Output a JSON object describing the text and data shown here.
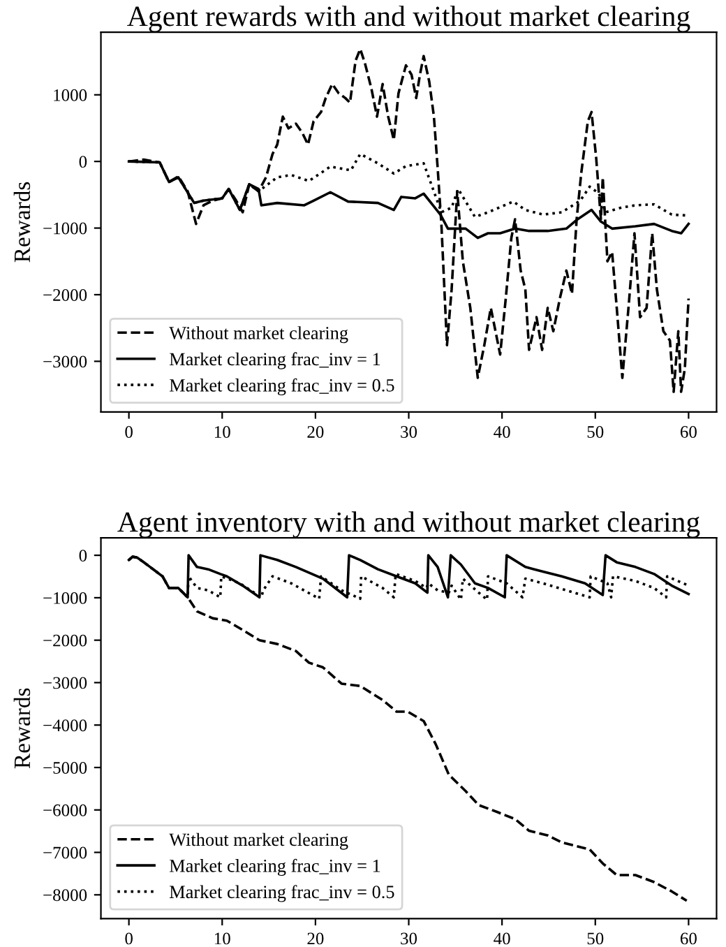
{
  "chart_data": [
    {
      "type": "line",
      "title": "Agent rewards with and without market clearing",
      "ylabel": "Rewards",
      "xlim": [
        -3,
        63
      ],
      "xticks": [
        0,
        10,
        20,
        30,
        40,
        50,
        60
      ],
      "ylim": [
        -3760,
        1940
      ],
      "yticks": [
        -3000,
        -2000,
        -1000,
        0,
        1000
      ],
      "legend": "lower left",
      "grid": false,
      "series": [
        {
          "name": "Without market clearing",
          "color": "#000000",
          "line_style": "dashed",
          "x": [
            0,
            1.6,
            3.3,
            4.3,
            5.3,
            6.3,
            7.2,
            8,
            9,
            10,
            10.7,
            11.5,
            12.2,
            12.9,
            13.9,
            14.7,
            15.4,
            15.9,
            16.5,
            17.1,
            17.9,
            18.6,
            19.2,
            19.8,
            20.6,
            21.1,
            21.8,
            22.5,
            23.2,
            23.7,
            24.3,
            24.8,
            25.3,
            26,
            26.6,
            27.2,
            27.8,
            28.4,
            28.9,
            29.7,
            30.3,
            30.8,
            31.2,
            31.6,
            32.2,
            32.7,
            33.1,
            33.5,
            34.1,
            34.6,
            35.2,
            35.8,
            36.6,
            37.4,
            38.1,
            38.8,
            39.3,
            39.8,
            40.4,
            41,
            41.4,
            42,
            42.5,
            42.9,
            43.7,
            44.3,
            44.9,
            45.5,
            46.2,
            46.9,
            47.5,
            48,
            48.5,
            49.2,
            49.6,
            50.1,
            50.6,
            50.8,
            51.3,
            51.8,
            52.3,
            52.9,
            53.6,
            54.2,
            54.8,
            55.5,
            56.1,
            56.6,
            57.3,
            58,
            58.4,
            58.9,
            59.2,
            59.6,
            60
          ],
          "values": [
            0,
            28,
            -14,
            -308,
            -224,
            -448,
            -938,
            -658,
            -588,
            -553,
            -413,
            -588,
            -763,
            -343,
            -448,
            -238,
            112,
            252,
            672,
            497,
            567,
            427,
            252,
            602,
            742,
            952,
            1162,
            1022,
            952,
            882,
            1512,
            1687,
            1477,
            1092,
            672,
            1162,
            672,
            322,
            1022,
            1442,
            1302,
            952,
            1302,
            1582,
            1197,
            672,
            -98,
            -938,
            -2758,
            -1918,
            -448,
            -1498,
            -2198,
            -3248,
            -2758,
            -2198,
            -2548,
            -2898,
            -2058,
            -1148,
            -868,
            -1638,
            -1918,
            -2828,
            -2338,
            -2828,
            -2198,
            -2548,
            -2058,
            -1638,
            -1988,
            -868,
            -168,
            602,
            742,
            42,
            -868,
            -238,
            -1498,
            -1358,
            -2198,
            -3248,
            -2128,
            -1078,
            -2338,
            -2198,
            -1078,
            -1918,
            -2548,
            -2688,
            -3458,
            -2548,
            -3458,
            -3108,
            -2058
          ]
        },
        {
          "name": "Market clearing frac_inv = 1",
          "color": "#000000",
          "line_style": "solid",
          "x": [
            0,
            3.3,
            4.3,
            5.3,
            7,
            8,
            10,
            10.7,
            11.9,
            12.9,
            13.9,
            14.2,
            15.9,
            18.8,
            19.8,
            21.6,
            23.5,
            26.7,
            28.4,
            29.2,
            30.7,
            31.6,
            32.4,
            33.4,
            34.2,
            36.1,
            37.4,
            38.5,
            39.8,
            41.4,
            42.9,
            44.9,
            46.9,
            48.1,
            49.6,
            50.6,
            51.8,
            54.3,
            56.3,
            58.2,
            59.2,
            60
          ],
          "values": [
            0,
            -14,
            -308,
            -238,
            -623,
            -588,
            -553,
            -413,
            -728,
            -343,
            -413,
            -658,
            -623,
            -658,
            -588,
            -462,
            -602,
            -623,
            -728,
            -532,
            -553,
            -483,
            -623,
            -798,
            -1008,
            -1008,
            -1148,
            -1078,
            -1078,
            -1008,
            -1043,
            -1043,
            -1008,
            -868,
            -728,
            -903,
            -1008,
            -973,
            -938,
            -1043,
            -1078,
            -938
          ]
        },
        {
          "name": "Market clearing frac_inv = 0.5",
          "color": "#000000",
          "line_style": "dotted",
          "x": [
            0,
            3.3,
            4.3,
            5.3,
            7,
            8,
            10,
            10.7,
            11.9,
            12.9,
            13.9,
            15.9,
            17.4,
            19.3,
            21.6,
            23.8,
            24.8,
            26.7,
            28.4,
            29.7,
            31.6,
            32.6,
            33.5,
            34.6,
            35.3,
            37.1,
            38.5,
            41.2,
            42.5,
            44.4,
            46.4,
            48.4,
            49.4,
            50.4,
            51.1,
            52.8,
            54.3,
            56.3,
            58.2,
            60
          ],
          "values": [
            0,
            -14,
            -308,
            -238,
            -623,
            -588,
            -553,
            -413,
            -728,
            -343,
            -448,
            -238,
            -203,
            -294,
            -77,
            -133,
            112,
            -28,
            -182,
            -70,
            -28,
            -413,
            -763,
            -693,
            -413,
            -833,
            -763,
            -602,
            -728,
            -798,
            -763,
            -588,
            -378,
            -483,
            -763,
            -693,
            -658,
            -644,
            -798,
            -812
          ]
        }
      ]
    },
    {
      "type": "line",
      "title": "Agent inventory with and without market clearing",
      "ylabel": "Rewards",
      "xlim": [
        -3,
        63
      ],
      "xticks": [
        0,
        10,
        20,
        30,
        40,
        50,
        60
      ],
      "ylim": [
        -8560,
        410
      ],
      "yticks": [
        -8000,
        -7000,
        -6000,
        -5000,
        -4000,
        -3000,
        -2000,
        -1000,
        0
      ],
      "legend": "lower left",
      "grid": false,
      "series": [
        {
          "name": "Without market clearing",
          "color": "#000000",
          "line_style": "dashed",
          "x": [
            0,
            0.4,
            0.9,
            1.6,
            2.6,
            3.6,
            4.3,
            5.3,
            6.3,
            7.3,
            9,
            10.5,
            12.2,
            14,
            15.9,
            17.9,
            19.3,
            20.8,
            22.8,
            24.8,
            27.2,
            28.7,
            29.9,
            31.6,
            32.9,
            34.3,
            36.1,
            37.5,
            39.5,
            41.4,
            42.9,
            44.9,
            46.4,
            49.4,
            50.8,
            52.3,
            54.3,
            56.3,
            58.2,
            59.8
          ],
          "values": [
            -110,
            -33,
            -55,
            -165,
            -330,
            -495,
            -770,
            -770,
            -990,
            -1320,
            -1485,
            -1540,
            -1760,
            -2002,
            -2090,
            -2255,
            -2530,
            -2640,
            -3025,
            -3080,
            -3410,
            -3685,
            -3685,
            -3905,
            -4455,
            -5170,
            -5555,
            -5885,
            -6050,
            -6215,
            -6490,
            -6600,
            -6765,
            -6930,
            -7260,
            -7535,
            -7535,
            -7700,
            -7920,
            -8140
          ]
        },
        {
          "name": "Market clearing frac_inv = 1",
          "color": "#000000",
          "line_style": "solid",
          "x": [
            0,
            0.4,
            0.9,
            1.6,
            2.6,
            3.6,
            4.3,
            5.3,
            6.3,
            6.4,
            7.3,
            8.5,
            9.8,
            10.5,
            12.2,
            14,
            14.1,
            15.9,
            17.9,
            20.8,
            23.4,
            23.6,
            24.8,
            26.7,
            28.7,
            30.7,
            32,
            32.1,
            33.1,
            34.2,
            34.5,
            35.6,
            37.1,
            38.5,
            40.3,
            40.5,
            42.5,
            44.4,
            46.4,
            48.9,
            50.8,
            51.1,
            52.3,
            54.3,
            56.3,
            58.2,
            60
          ],
          "values": [
            -110,
            -33,
            -55,
            -165,
            -330,
            -495,
            -770,
            -770,
            -990,
            0,
            -275,
            -330,
            -440,
            -495,
            -715,
            -990,
            0,
            -110,
            -275,
            -550,
            -990,
            0,
            -110,
            -330,
            -495,
            -660,
            -880,
            0,
            -275,
            -990,
            0,
            -220,
            -660,
            -770,
            -990,
            0,
            -275,
            -385,
            -495,
            -660,
            -935,
            0,
            -165,
            -275,
            -440,
            -715,
            -913
          ]
        },
        {
          "name": "Market clearing frac_inv = 0.5",
          "color": "#000000",
          "line_style": "dotted",
          "x": [
            0,
            0.4,
            0.9,
            1.6,
            2.6,
            3.6,
            4.3,
            5.3,
            6.3,
            6.4,
            7.3,
            8.5,
            9.8,
            9.9,
            11.9,
            14.2,
            14.4,
            15.4,
            17.4,
            20.4,
            20.6,
            22.8,
            24.8,
            24.9,
            27.2,
            28.4,
            28.6,
            30.7,
            31.9,
            32.1,
            33.1,
            34.3,
            34.6,
            35.6,
            35.8,
            37.5,
            38.4,
            38.5,
            40.5,
            42.2,
            42.5,
            44.4,
            46.9,
            49.4,
            49.5,
            51.3,
            51.7,
            51.9,
            54.3,
            56.3,
            57.6,
            57.7,
            60
          ],
          "values": [
            -110,
            -33,
            -55,
            -165,
            -330,
            -495,
            -770,
            -770,
            -990,
            -495,
            -770,
            -825,
            -990,
            -495,
            -660,
            -990,
            -825,
            -495,
            -660,
            -1023,
            -495,
            -825,
            -1023,
            -495,
            -770,
            -990,
            -440,
            -605,
            -770,
            -660,
            -825,
            -880,
            -715,
            -1045,
            -550,
            -880,
            -1045,
            -495,
            -660,
            -990,
            -550,
            -660,
            -825,
            -990,
            -495,
            -660,
            -990,
            -495,
            -605,
            -770,
            -990,
            -495,
            -715
          ]
        }
      ]
    }
  ]
}
